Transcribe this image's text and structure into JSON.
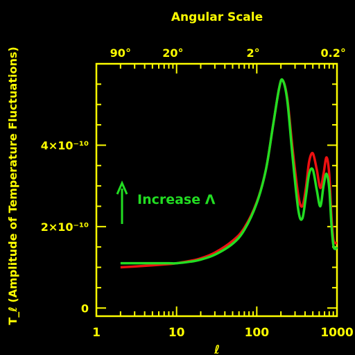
{
  "chart_data": {
    "type": "line",
    "title": "Angular Scale",
    "xlabel": "ℓ",
    "ylabel": "T_ℓ (Amplitude of Temperature Fluctuations)",
    "x_scale": "log",
    "xlim": [
      1,
      1000
    ],
    "ylim": [
      -2e-11,
      6e-10
    ],
    "x_ticks": [
      {
        "value": 1,
        "label": "1"
      },
      {
        "value": 10,
        "label": "10"
      },
      {
        "value": 100,
        "label": "100"
      },
      {
        "value": 1000,
        "label": "1000"
      }
    ],
    "y_ticks": [
      {
        "value": 0,
        "label": "0"
      },
      {
        "value": 2e-10,
        "label": "2×10⁻¹⁰"
      },
      {
        "value": 4e-10,
        "label": "4×10⁻¹⁰"
      }
    ],
    "top_ticks": [
      {
        "value": 2,
        "label": "90°"
      },
      {
        "value": 9,
        "label": "20°"
      },
      {
        "value": 90,
        "label": "2°"
      },
      {
        "value": 900,
        "label": "0.2°"
      }
    ],
    "annotation": {
      "text": "Increase Λ",
      "arrow": "up",
      "color": "#22dd22"
    },
    "grid": false,
    "colors": {
      "background": "#000000",
      "axis": "#ffff00"
    },
    "series": [
      {
        "color": "#ee1111",
        "x": [
          2,
          3,
          5,
          8,
          10,
          15,
          20,
          30,
          50,
          70,
          100,
          130,
          160,
          190,
          210,
          240,
          280,
          330,
          370,
          410,
          450,
          500,
          560,
          620,
          680,
          740,
          800,
          850,
          900,
          950,
          1000
        ],
        "y": [
          1e-10,
          1.02e-10,
          1.05e-10,
          1.08e-10,
          1.1e-10,
          1.16e-10,
          1.22e-10,
          1.36e-10,
          1.65e-10,
          1.97e-10,
          2.6e-10,
          3.4e-10,
          4.5e-10,
          5.4e-10,
          5.6e-10,
          5.15e-10,
          3.9e-10,
          2.75e-10,
          2.5e-10,
          2.95e-10,
          3.6e-10,
          3.8e-10,
          3.4e-10,
          2.95e-10,
          3.3e-10,
          3.7e-10,
          3.3e-10,
          2.3e-10,
          1.7e-10,
          1.6e-10,
          1.6e-10
        ]
      },
      {
        "color": "#22dd22",
        "x": [
          2,
          3,
          5,
          8,
          10,
          15,
          20,
          30,
          50,
          70,
          100,
          130,
          160,
          190,
          210,
          240,
          280,
          330,
          370,
          410,
          450,
          500,
          560,
          620,
          680,
          740,
          800,
          850,
          900,
          950,
          1000
        ],
        "y": [
          1.1e-10,
          1.1e-10,
          1.1e-10,
          1.1e-10,
          1.1e-10,
          1.14e-10,
          1.19e-10,
          1.31e-10,
          1.58e-10,
          1.92e-10,
          2.58e-10,
          3.4e-10,
          4.5e-10,
          5.4e-10,
          5.6e-10,
          5.1e-10,
          3.7e-10,
          2.4e-10,
          2.2e-10,
          2.75e-10,
          3.3e-10,
          3.4e-10,
          2.9e-10,
          2.5e-10,
          3e-10,
          3.3e-10,
          2.95e-10,
          2.1e-10,
          1.55e-10,
          1.45e-10,
          1.5e-10
        ]
      }
    ]
  }
}
